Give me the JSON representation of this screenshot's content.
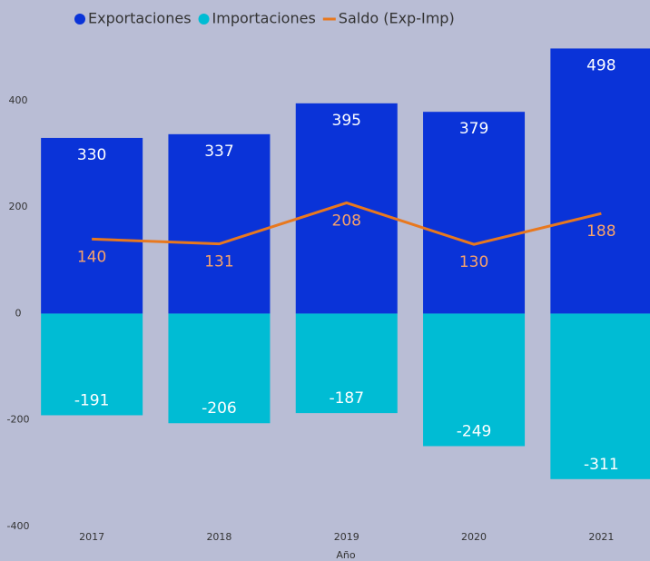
{
  "chart_data": {
    "type": "bar",
    "x_label": "Año",
    "categories": [
      "2017",
      "2018",
      "2019",
      "2020",
      "2021"
    ],
    "series": [
      {
        "name": "Exportaciones",
        "type": "bar",
        "color": "#0a33d8",
        "label_color": "#ffffff",
        "values": [
          330,
          337,
          395,
          379,
          498
        ]
      },
      {
        "name": "Importaciones",
        "type": "bar",
        "color": "#00bcd4",
        "label_color": "#ffffff",
        "values": [
          -191,
          -206,
          -187,
          -249,
          -311
        ]
      },
      {
        "name": "Saldo (Exp-Imp)",
        "type": "line",
        "color": "#e8781e",
        "label_color": "#f8a36a",
        "values": [
          140,
          131,
          208,
          130,
          188
        ]
      }
    ],
    "ylim": [
      -400,
      500
    ],
    "yticks": [
      -400,
      -200,
      0,
      200,
      400
    ],
    "grid": false,
    "legend": "top"
  }
}
